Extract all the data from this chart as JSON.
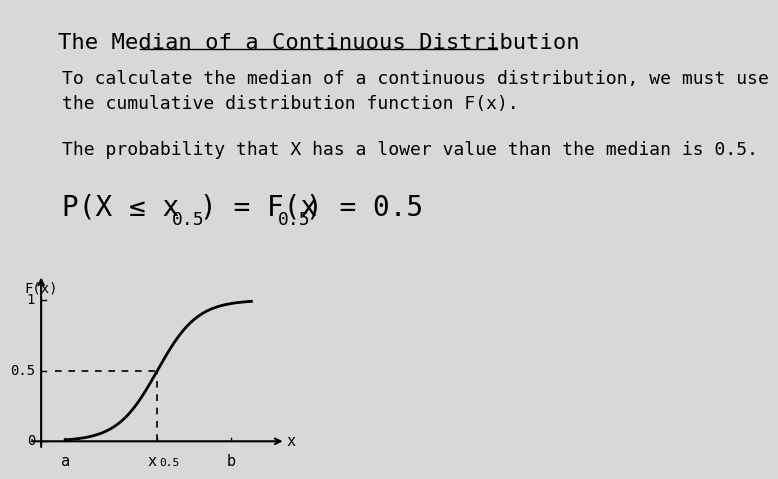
{
  "title": "The Median of a Continuous Distribution",
  "bg_color": "#d8d8d8",
  "text1": "To calculate the median of a continuous distribution, we must use\nthe cumulative distribution function F(x).",
  "text2": "The probability that X has a lower value than the median is 0.5.",
  "font_family": "monospace",
  "title_fontsize": 16,
  "text_fontsize": 13,
  "formula_fontsize": 20,
  "formula_small_fontsize": 13
}
